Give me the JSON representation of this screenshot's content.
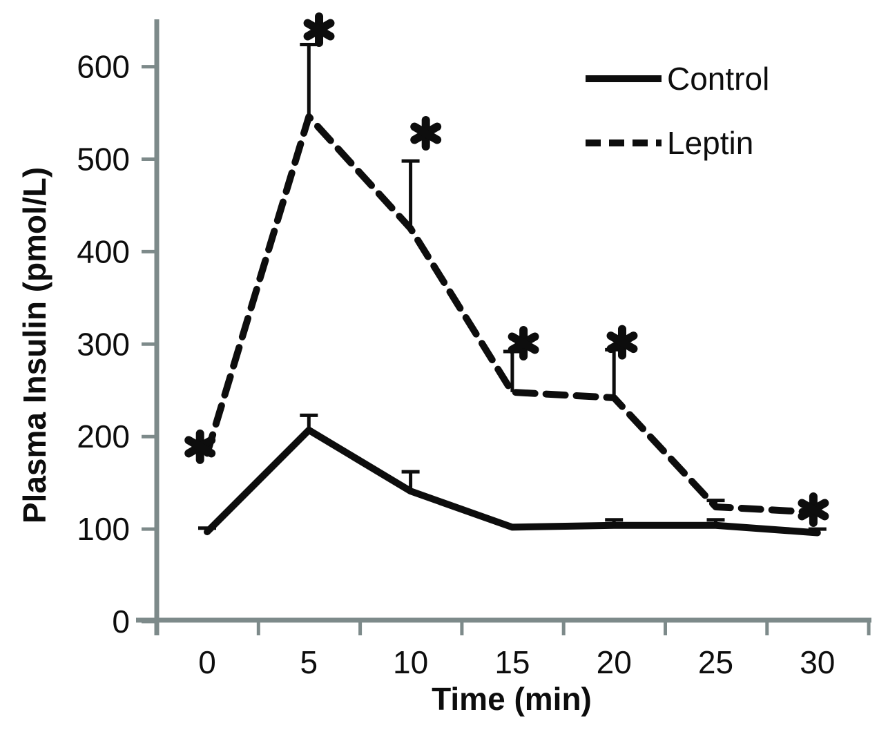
{
  "chart_data": {
    "type": "line",
    "title": "",
    "xlabel": "Time (min)",
    "ylabel": "Plasma Insulin (pmol/L)",
    "x": [
      0,
      5,
      10,
      15,
      20,
      25,
      30
    ],
    "xticks": [
      0,
      5,
      10,
      15,
      20,
      25,
      30
    ],
    "yticks": [
      0,
      100,
      200,
      300,
      400,
      500,
      600
    ],
    "ylim": [
      0,
      650
    ],
    "grid": false,
    "legend_position": "top-right",
    "series": [
      {
        "name": "Control",
        "style": "solid",
        "values": [
          97,
          207,
          141,
          102,
          104,
          104,
          96
        ],
        "error_up": [
          4,
          16,
          21,
          0,
          6,
          6,
          4
        ]
      },
      {
        "name": "Leptin",
        "style": "dashed",
        "values": [
          182,
          546,
          425,
          248,
          242,
          124,
          118
        ],
        "error_up": [
          0,
          78,
          73,
          44,
          52,
          7,
          0
        ]
      }
    ],
    "annotations": [
      {
        "symbol": "*",
        "series": "Leptin",
        "x": -0.35,
        "y": 189
      },
      {
        "symbol": "*",
        "series": "Leptin",
        "x": 5.5,
        "y": 640
      },
      {
        "symbol": "*",
        "series": "Leptin",
        "x": 10.75,
        "y": 528
      },
      {
        "symbol": "*",
        "series": "Leptin",
        "x": 15.55,
        "y": 301
      },
      {
        "symbol": "*",
        "series": "Leptin",
        "x": 20.4,
        "y": 302
      },
      {
        "symbol": "*",
        "series": "Leptin",
        "x": 29.8,
        "y": 121
      }
    ],
    "colors": {
      "line": "#0d0d0d",
      "axis": "#7d8a8a",
      "text": "#0d0d0d"
    }
  }
}
